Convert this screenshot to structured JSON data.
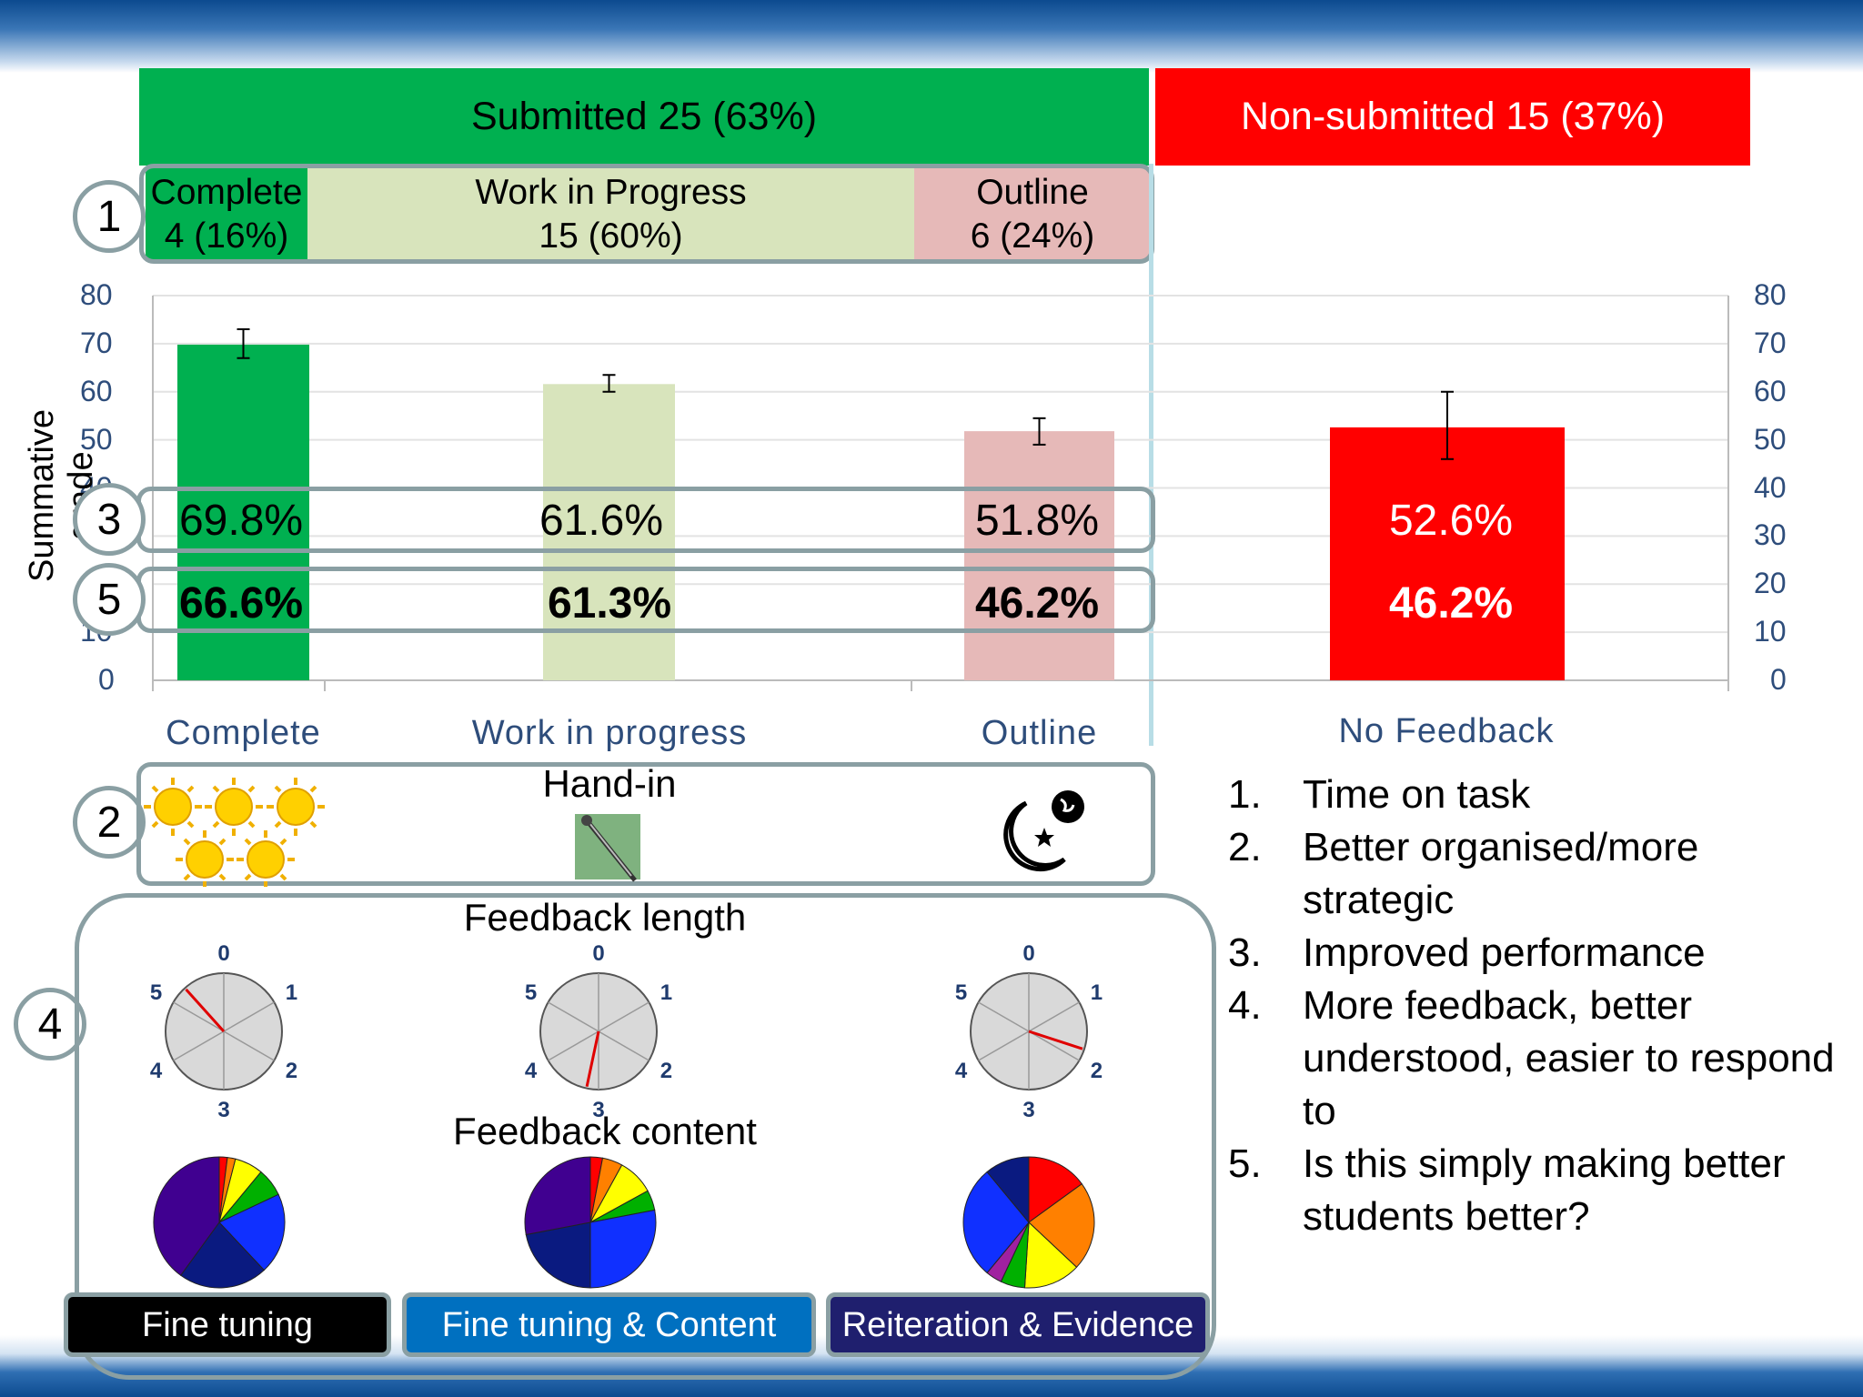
{
  "header": {
    "submitted": "Submitted 25 (63%)",
    "non_submitted": "Non-submitted 15 (37%)"
  },
  "categories_row": [
    {
      "name": "Complete",
      "count": "4 (16%)"
    },
    {
      "name": "Work in Progress",
      "count": "15 (60%)"
    },
    {
      "name": "Outline",
      "count": "6 (24%)"
    }
  ],
  "markers": [
    "1",
    "2",
    "3",
    "4",
    "5"
  ],
  "colors": {
    "complete": "#00b050",
    "wip": "#d8e4bc",
    "outline": "#e6b9b8",
    "no_feedback": "#ff0000",
    "box_border": "#8a9fa3",
    "axis_text": "#2e4d7b"
  },
  "chart_data": {
    "type": "bar",
    "ylabel": "Summative grade",
    "ylim": [
      0,
      80
    ],
    "yticks": [
      "0",
      "10",
      "20",
      "30",
      "40",
      "50",
      "60",
      "70",
      "80"
    ],
    "grid": true,
    "categories": [
      "Complete",
      "Work in progress",
      "Outline",
      "No Feedback"
    ],
    "series": [
      {
        "values": [
          69.8,
          61.6,
          51.8,
          52.6
        ],
        "error_low": [
          67,
          60,
          49,
          46
        ],
        "error_high": [
          73,
          63.5,
          54.5,
          60
        ]
      }
    ],
    "row3_labels": [
      "69.8%",
      "61.6%",
      "51.8%",
      "52.6%"
    ],
    "row5_labels": [
      "66.6%",
      "61.3%",
      "46.2%",
      "46.2%"
    ]
  },
  "handin": {
    "label": "Hand-in",
    "icons": [
      "sun-icon",
      "sun-icon",
      "sun-icon",
      "sun-icon",
      "sun-icon",
      "pin-icon",
      "moon-icon"
    ]
  },
  "feedback": {
    "length_title": "Feedback length",
    "content_title": "Feedback content",
    "dial_labels": [
      "0",
      "1",
      "2",
      "3",
      "4",
      "5"
    ],
    "dial_values": [
      5.3,
      3.2,
      1.8
    ],
    "pies": [
      {
        "slices": [
          {
            "value": 2,
            "color": "#ff0000"
          },
          {
            "value": 2,
            "color": "#ff8000"
          },
          {
            "value": 7,
            "color": "#ffff00"
          },
          {
            "value": 7,
            "color": "#00b000"
          },
          {
            "value": 20,
            "color": "#1030ff"
          },
          {
            "value": 22,
            "color": "#0a1a80"
          },
          {
            "value": 40,
            "color": "#400090"
          }
        ]
      },
      {
        "slices": [
          {
            "value": 3,
            "color": "#ff0000"
          },
          {
            "value": 5,
            "color": "#ff8000"
          },
          {
            "value": 9,
            "color": "#ffff00"
          },
          {
            "value": 5,
            "color": "#00b000"
          },
          {
            "value": 28,
            "color": "#1030ff"
          },
          {
            "value": 22,
            "color": "#0a1a80"
          },
          {
            "value": 28,
            "color": "#400090"
          }
        ]
      },
      {
        "slices": [
          {
            "value": 15,
            "color": "#ff0000"
          },
          {
            "value": 22,
            "color": "#ff8000"
          },
          {
            "value": 14,
            "color": "#ffff00"
          },
          {
            "value": 6,
            "color": "#00b000"
          },
          {
            "value": 4,
            "color": "#a020a0"
          },
          {
            "value": 28,
            "color": "#1030ff"
          },
          {
            "value": 11,
            "color": "#0a1a80"
          }
        ]
      }
    ],
    "styles": [
      {
        "label": "Fine tuning",
        "color": "#000000"
      },
      {
        "label": "Fine tuning & Content",
        "color": "#0070c0"
      },
      {
        "label": "Reiteration & Evidence",
        "color": "#1f1f6e"
      }
    ]
  },
  "conclusions": [
    {
      "num": "1.",
      "text": "Time on task"
    },
    {
      "num": "2.",
      "text": "Better organised/more strategic"
    },
    {
      "num": "3.",
      "text": "Improved performance"
    },
    {
      "num": "4.",
      "text": "More feedback, better understood, easier to respond to"
    },
    {
      "num": "5.",
      "text": "Is this simply making better students better?"
    }
  ]
}
